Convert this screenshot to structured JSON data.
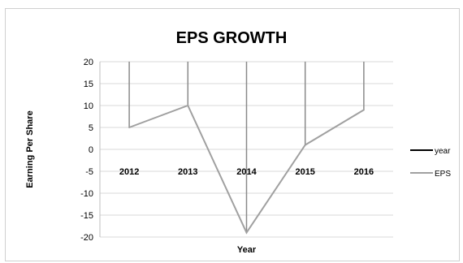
{
  "chart_data": {
    "type": "line",
    "title": "EPS GROWTH",
    "xlabel": "Year",
    "ylabel": "Earning Per Share",
    "categories": [
      "2012",
      "2013",
      "2014",
      "2015",
      "2016"
    ],
    "ylim": [
      -20,
      20
    ],
    "yticks": [
      20,
      15,
      10,
      5,
      0,
      -5,
      -10,
      -15,
      -20
    ],
    "grid": true,
    "legend_position": "right",
    "series": [
      {
        "name": "year",
        "values": [
          2012,
          2013,
          2014,
          2015,
          2016
        ],
        "color": "#000000"
      },
      {
        "name": "EPS",
        "values": [
          5,
          10,
          -19,
          1,
          9
        ],
        "color": "#a0a0a0"
      }
    ]
  }
}
